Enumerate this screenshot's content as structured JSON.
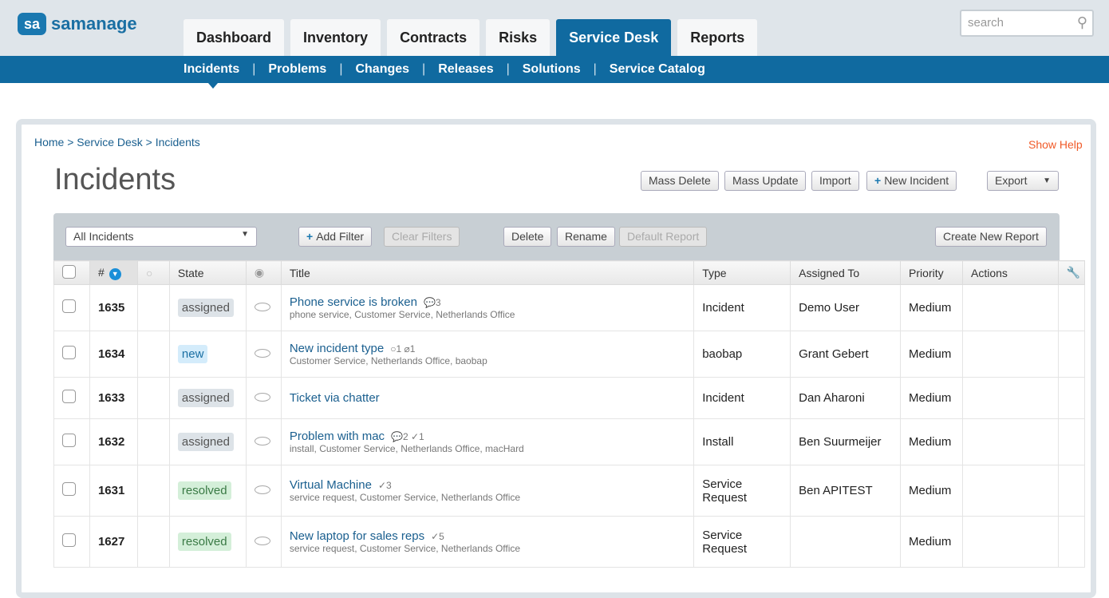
{
  "logo": {
    "badge": "sa",
    "name": "samanage"
  },
  "tabs": [
    "Dashboard",
    "Inventory",
    "Contracts",
    "Risks",
    "Service Desk",
    "Reports"
  ],
  "active_tab": "Service Desk",
  "search": {
    "placeholder": "search"
  },
  "subnav": [
    "Incidents",
    "Problems",
    "Changes",
    "Releases",
    "Solutions",
    "Service Catalog"
  ],
  "breadcrumb": "Home > Service Desk > Incidents",
  "show_help": "Show Help",
  "page_title": "Incidents",
  "actions": {
    "mass_delete": "Mass Delete",
    "mass_update": "Mass Update",
    "import": "Import",
    "new_incident": "New Incident",
    "export": "Export"
  },
  "toolbar": {
    "view": "All Incidents",
    "add_filter": "Add Filter",
    "clear_filters": "Clear Filters",
    "delete": "Delete",
    "rename": "Rename",
    "default_report": "Default Report",
    "create_report": "Create New Report"
  },
  "columns": {
    "num": "#",
    "state": "State",
    "title": "Title",
    "type": "Type",
    "assigned": "Assigned To",
    "priority": "Priority",
    "actions": "Actions"
  },
  "rows": [
    {
      "id": "1635",
      "state": "assigned",
      "title": "Phone service is broken",
      "meta": "💬3",
      "tags": "phone service, Customer Service, Netherlands Office",
      "type": "Incident",
      "assigned": "Demo User",
      "priority": "Medium"
    },
    {
      "id": "1634",
      "state": "new",
      "title": "New incident type",
      "meta": "○1  ⌀1",
      "tags": "Customer Service, Netherlands Office, baobap",
      "type": "baobap",
      "assigned": "Grant Gebert",
      "priority": "Medium"
    },
    {
      "id": "1633",
      "state": "assigned",
      "title": "Ticket via chatter",
      "meta": "",
      "tags": "",
      "type": "Incident",
      "assigned": "Dan Aharoni",
      "priority": "Medium"
    },
    {
      "id": "1632",
      "state": "assigned",
      "title": "Problem with mac",
      "meta": "💬2  ✓1",
      "tags": "install, Customer Service, Netherlands Office, macHard",
      "type": "Install",
      "assigned": "Ben Suurmeijer",
      "priority": "Medium"
    },
    {
      "id": "1631",
      "state": "resolved",
      "title": "Virtual Machine",
      "meta": "✓3",
      "tags": "service request, Customer Service, Netherlands Office",
      "type": "Service Request",
      "assigned": "Ben APITEST",
      "priority": "Medium"
    },
    {
      "id": "1627",
      "state": "resolved",
      "title": "New laptop for sales reps",
      "meta": "✓5",
      "tags": "service request, Customer Service, Netherlands Office",
      "type": "Service Request",
      "assigned": "",
      "priority": "Medium"
    }
  ]
}
